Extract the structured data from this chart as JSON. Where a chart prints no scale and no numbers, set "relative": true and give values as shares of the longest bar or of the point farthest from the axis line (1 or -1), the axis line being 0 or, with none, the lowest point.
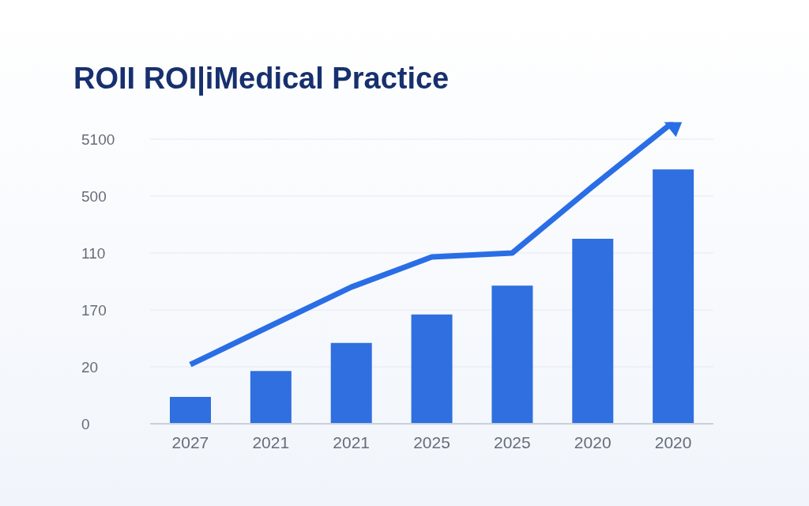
{
  "chart_data": {
    "type": "bar",
    "title": "ROII ROI|iMedical Practice",
    "categories": [
      "2027",
      "2021",
      "2021",
      "2025",
      "2025",
      "2020",
      "2020"
    ],
    "series": [
      {
        "color": "#2f6fe0",
        "values": [
          0.089,
          0.175,
          0.268,
          0.362,
          0.458,
          0.613,
          0.843
        ]
      },
      {
        "type": "line",
        "color": "#2a6ee6",
        "values": [
          0.196,
          0.325,
          0.453,
          0.553,
          0.566,
          0.787,
          1
        ]
      }
    ],
    "relative": true,
    "annotations": [
      "0",
      "20",
      "170",
      "110",
      "500",
      "5100"
    ],
    "grid": "y",
    "legend": false,
    "marker": "none"
  }
}
